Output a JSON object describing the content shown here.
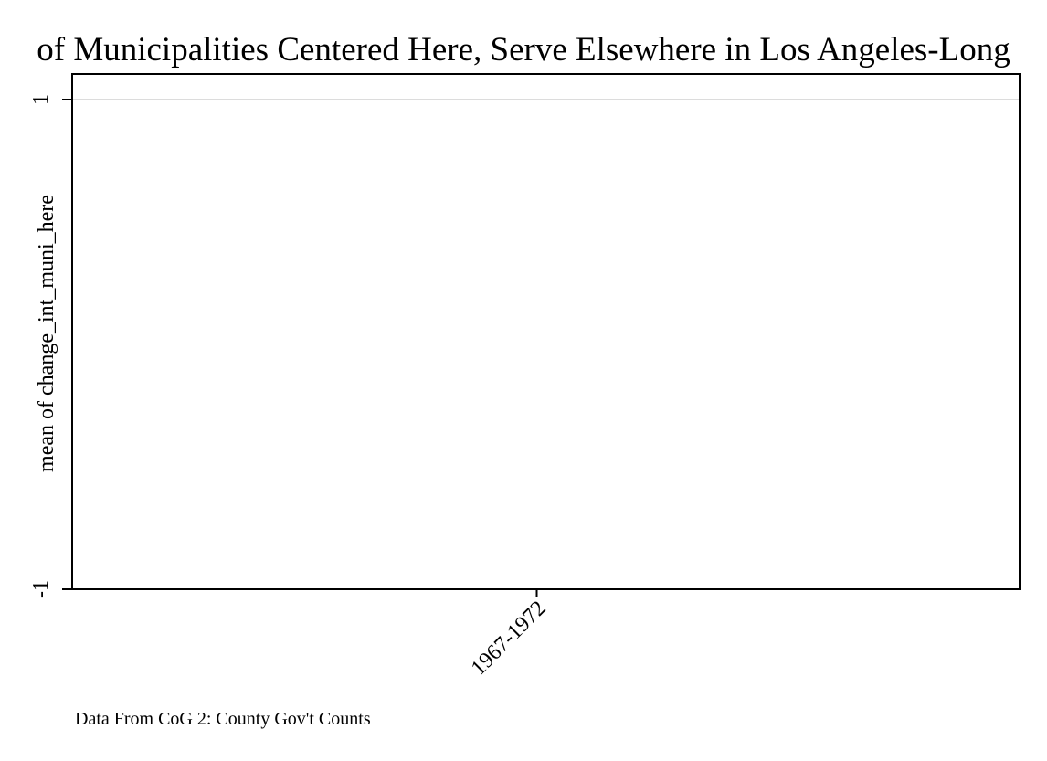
{
  "chart_data": {
    "type": "bar",
    "title": "of Municipalities Centered Here, Serve Elsewhere in Los Angeles-Long",
    "xlabel": "",
    "ylabel": "mean of change_int_muni_here",
    "categories": [
      "1967-1972"
    ],
    "values": [
      0
    ],
    "ylim": [
      -1,
      1
    ],
    "yticks": [
      {
        "value": -1,
        "label": "-1"
      },
      {
        "value": 1,
        "label": "1"
      }
    ],
    "grid": true,
    "caption": "Data From CoG 2: County Gov't Counts",
    "colors": {
      "gridline": "#dcdcdc",
      "axis": "#000000",
      "background": "#ffffff"
    }
  }
}
